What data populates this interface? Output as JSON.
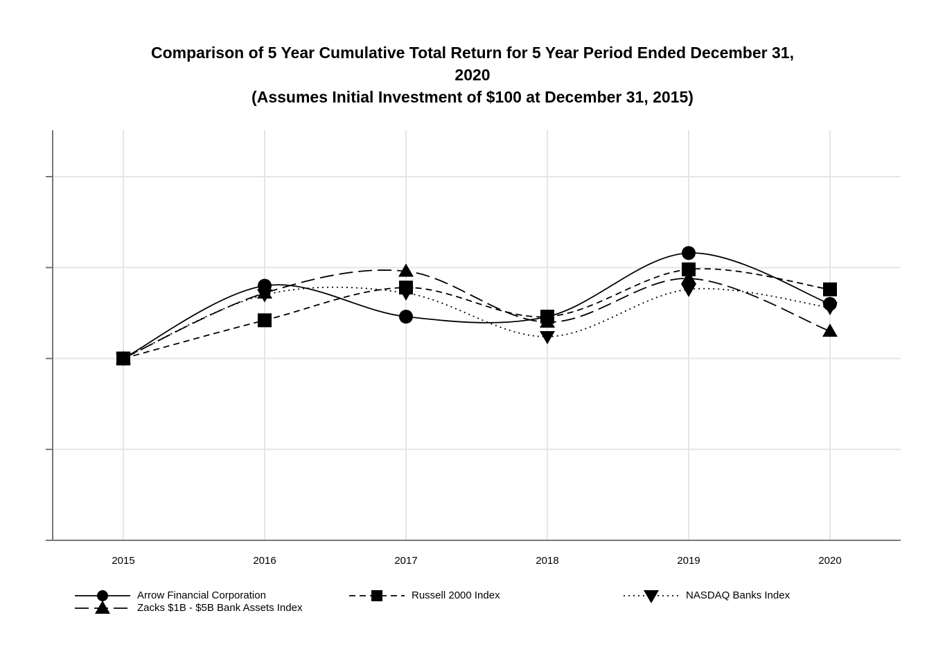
{
  "chart_data": {
    "type": "line",
    "title_lines": [
      "Comparison of 5 Year Cumulative Total Return for 5 Year Period Ended December 31,",
      "2020",
      "(Assumes Initial Investment of $100 at December 31, 2015)"
    ],
    "xlabel": "",
    "ylabel": "",
    "categories": [
      "2015",
      "2016",
      "2017",
      "2018",
      "2019",
      "2020"
    ],
    "ylim": [
      0,
      200
    ],
    "grid": true,
    "legend_position": "bottom",
    "series": [
      {
        "name": "Arrow Financial Corporation",
        "values": [
          100,
          140,
          123,
          123,
          158,
          130
        ],
        "marker": "circle",
        "dash": "solid"
      },
      {
        "name": "Russell 2000 Index",
        "values": [
          100,
          121,
          139,
          123,
          149,
          138
        ],
        "marker": "square",
        "dash": "dashed"
      },
      {
        "name": "NASDAQ Banks Index",
        "values": [
          100,
          135,
          136,
          112,
          138,
          128
        ],
        "marker": "triangle-down",
        "dash": "dotted"
      },
      {
        "name": "Zacks $1B - $5B Bank Assets Index",
        "values": [
          100,
          136,
          148,
          120,
          144,
          115
        ],
        "marker": "triangle-up",
        "dash": "long-dash"
      }
    ]
  }
}
